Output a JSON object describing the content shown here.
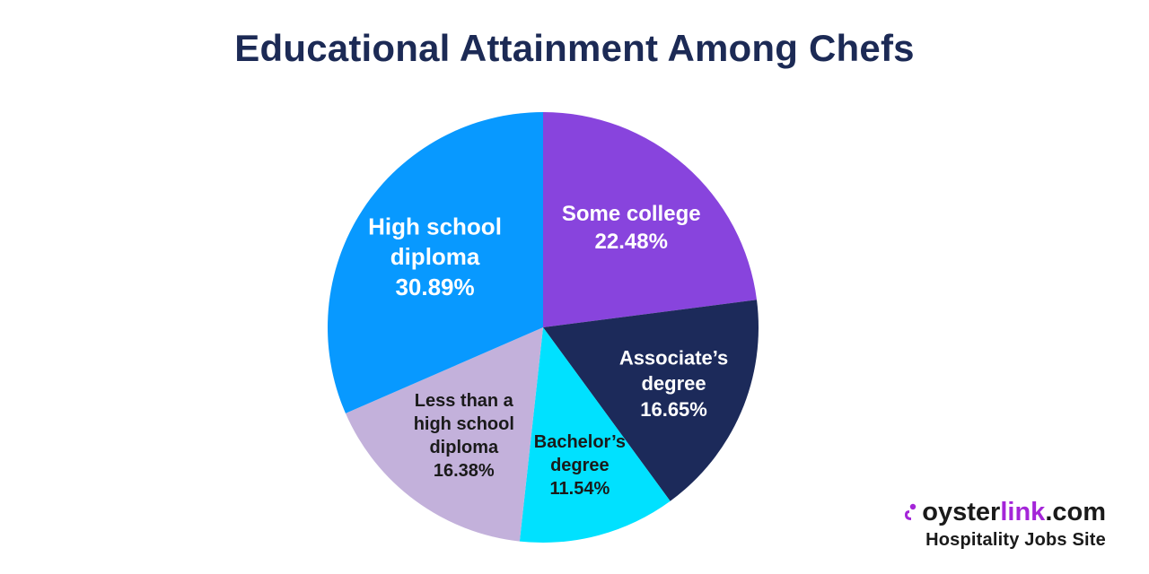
{
  "chart_data": {
    "type": "pie",
    "title": "Educational Attainment Among Chefs",
    "slices": [
      {
        "label_lines": [
          "Some college"
        ],
        "value_label": "22.48%",
        "value": 22.48,
        "color": "#8844dd",
        "text_color": "#ffffff"
      },
      {
        "label_lines": [
          "Associate’s",
          "degree"
        ],
        "value_label": "16.65%",
        "value": 16.65,
        "color": "#1c2a5a",
        "text_color": "#ffffff"
      },
      {
        "label_lines": [
          "Bachelor’s",
          "degree"
        ],
        "value_label": "11.54%",
        "value": 11.54,
        "color": "#00e1ff",
        "text_color": "#1a1a1a"
      },
      {
        "label_lines": [
          "Less than a",
          "high school",
          "diploma"
        ],
        "value_label": "16.38%",
        "value": 16.38,
        "color": "#c3b1db",
        "text_color": "#1a1a1a"
      },
      {
        "label_lines": [
          "High school",
          "diploma"
        ],
        "value_label": "30.89%",
        "value": 30.89,
        "color": "#0899ff",
        "text_color": "#ffffff"
      }
    ]
  },
  "brand": {
    "name_main": "oyster",
    "name_accent": "link",
    "name_suffix": ".com",
    "tagline": "Hospitality Jobs Site",
    "accent_color": "#a425d8"
  }
}
